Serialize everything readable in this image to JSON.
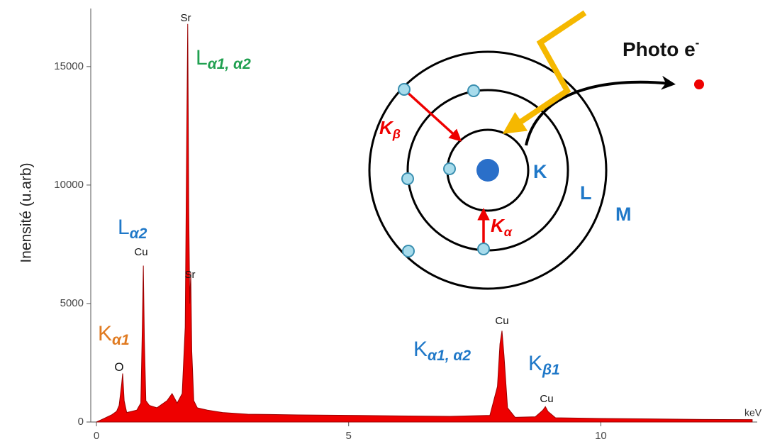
{
  "chart_data": {
    "type": "area",
    "y_label": "Inensité (u.arb)",
    "x_unit": "keV",
    "xlim": [
      0,
      13.1
    ],
    "xticks": [
      0,
      5,
      10
    ],
    "ylim": [
      0,
      17450
    ],
    "yticks": [
      0,
      5000,
      10000,
      15000
    ],
    "x": [
      0,
      0.1,
      0.2,
      0.3,
      0.4,
      0.45,
      0.5,
      0.52,
      0.55,
      0.6,
      0.7,
      0.8,
      0.88,
      0.91,
      0.93,
      0.95,
      0.98,
      1.05,
      1.2,
      1.4,
      1.5,
      1.55,
      1.6,
      1.7,
      1.76,
      1.79,
      1.81,
      1.83,
      1.85,
      1.87,
      1.89,
      1.93,
      2.0,
      2.2,
      2.5,
      3,
      4,
      5,
      6,
      7,
      7.8,
      7.95,
      8.0,
      8.04,
      8.08,
      8.15,
      8.3,
      8.7,
      8.85,
      8.9,
      8.95,
      9.1,
      10,
      11,
      12,
      13
    ],
    "series": [
      {
        "name": "spectrum",
        "color": "#ee0000",
        "values": [
          0,
          100,
          200,
          300,
          450,
          700,
          1600,
          2050,
          900,
          400,
          450,
          500,
          800,
          4000,
          6600,
          3500,
          900,
          700,
          600,
          900,
          1200,
          1000,
          800,
          1200,
          4000,
          12000,
          16800,
          9000,
          5000,
          6300,
          3000,
          900,
          600,
          500,
          400,
          330,
          300,
          280,
          260,
          240,
          280,
          1500,
          3300,
          3850,
          2800,
          600,
          200,
          220,
          500,
          650,
          450,
          180,
          150,
          130,
          110,
          100
        ]
      }
    ],
    "annotations": [
      {
        "text": "Sr"
      },
      {
        "text": "Cu"
      },
      {
        "text": "Sr"
      },
      {
        "text": "O"
      },
      {
        "text": "Cu"
      },
      {
        "text": "Cu"
      },
      {
        "text": "L",
        "sub": "α1, α2"
      },
      {
        "text": "L",
        "sub": "α2"
      },
      {
        "text": "K",
        "sub": "α1"
      },
      {
        "text": "K",
        "sub": "α1, α2"
      },
      {
        "text": "K",
        "sub": "β1"
      }
    ]
  },
  "diagram": {
    "photo": "Photo e",
    "photo_sup": "-",
    "shells": [
      "K",
      "L",
      "M"
    ],
    "transitions": [
      {
        "text": "K",
        "sub": "β"
      },
      {
        "text": "K",
        "sub": "α"
      }
    ]
  }
}
